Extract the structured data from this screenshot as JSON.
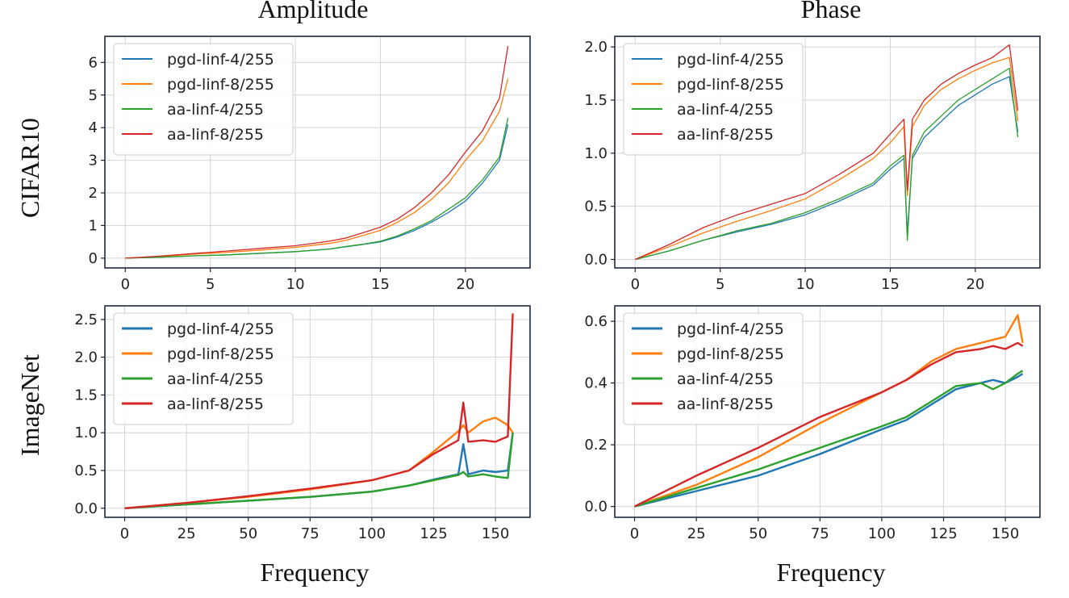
{
  "figure": {
    "col_titles": [
      "Amplitude",
      "Phase"
    ],
    "row_labels": [
      "CIFAR10",
      "ImageNet"
    ],
    "xlabel": "Frequency"
  },
  "colors": {
    "pgd-linf-4/255": "#1f77b4",
    "pgd-linf-8/255": "#ff7f0e",
    "aa-linf-4/255": "#2ca02c",
    "aa-linf-8/255": "#d62728"
  },
  "chart_data": [
    {
      "type": "line",
      "title": "Amplitude",
      "row": "CIFAR10",
      "xlim": [
        -1.2,
        23.8
      ],
      "ylim": [
        -0.3,
        6.8
      ],
      "xticks": [
        0,
        5,
        10,
        15,
        20
      ],
      "yticks": [
        0,
        1,
        2,
        3,
        4,
        5,
        6
      ],
      "legend": [
        "pgd-linf-4/255",
        "pgd-linf-8/255",
        "aa-linf-4/255",
        "aa-linf-8/255"
      ],
      "legend_position": "top-left",
      "series": [
        {
          "name": "pgd-linf-4/255",
          "x": [
            0,
            2,
            4,
            6,
            8,
            10,
            12,
            13,
            14,
            15,
            16,
            17,
            18,
            19,
            20,
            21,
            22,
            22.5
          ],
          "values": [
            0,
            0.03,
            0.07,
            0.1,
            0.15,
            0.2,
            0.28,
            0.35,
            0.42,
            0.5,
            0.65,
            0.85,
            1.1,
            1.4,
            1.75,
            2.3,
            3.0,
            4.1
          ]
        },
        {
          "name": "pgd-linf-8/255",
          "x": [
            0,
            2,
            4,
            6,
            8,
            10,
            12,
            13,
            14,
            15,
            16,
            17,
            18,
            19,
            20,
            21,
            22,
            22.5
          ],
          "values": [
            0,
            0.05,
            0.12,
            0.18,
            0.25,
            0.33,
            0.45,
            0.55,
            0.7,
            0.85,
            1.1,
            1.4,
            1.8,
            2.3,
            3.0,
            3.6,
            4.5,
            5.5
          ]
        },
        {
          "name": "aa-linf-4/255",
          "x": [
            0,
            2,
            4,
            6,
            8,
            10,
            12,
            13,
            14,
            15,
            16,
            17,
            18,
            19,
            20,
            21,
            22,
            22.5
          ],
          "values": [
            0,
            0.03,
            0.07,
            0.1,
            0.15,
            0.2,
            0.28,
            0.36,
            0.43,
            0.52,
            0.68,
            0.9,
            1.15,
            1.5,
            1.85,
            2.4,
            3.1,
            4.3
          ]
        },
        {
          "name": "aa-linf-8/255",
          "x": [
            0,
            2,
            4,
            6,
            8,
            10,
            12,
            13,
            14,
            15,
            16,
            17,
            18,
            19,
            20,
            21,
            22,
            22.5
          ],
          "values": [
            0,
            0.06,
            0.14,
            0.22,
            0.3,
            0.38,
            0.52,
            0.62,
            0.78,
            0.95,
            1.2,
            1.55,
            2.0,
            2.55,
            3.25,
            3.9,
            4.9,
            6.5
          ]
        }
      ]
    },
    {
      "type": "line",
      "title": "Phase",
      "row": "CIFAR10",
      "xlim": [
        -1.2,
        23.8
      ],
      "ylim": [
        -0.08,
        2.1
      ],
      "xticks": [
        0,
        5,
        10,
        15,
        20
      ],
      "yticks": [
        0.0,
        0.5,
        1.0,
        1.5,
        2.0
      ],
      "legend": [
        "pgd-linf-4/255",
        "pgd-linf-8/255",
        "aa-linf-4/255",
        "aa-linf-8/255"
      ],
      "legend_position": "top-left",
      "series": [
        {
          "name": "pgd-linf-4/255",
          "x": [
            0,
            2,
            4,
            6,
            8,
            10,
            12,
            14,
            15,
            15.8,
            16,
            16.3,
            17,
            18,
            19,
            20,
            21,
            22,
            22.5
          ],
          "values": [
            0,
            0.08,
            0.18,
            0.26,
            0.33,
            0.42,
            0.55,
            0.7,
            0.85,
            0.95,
            0.25,
            0.95,
            1.15,
            1.3,
            1.45,
            1.55,
            1.65,
            1.72,
            1.2
          ]
        },
        {
          "name": "pgd-linf-8/255",
          "x": [
            0,
            2,
            4,
            6,
            8,
            10,
            12,
            14,
            15,
            15.8,
            16,
            16.3,
            17,
            18,
            19,
            20,
            21,
            22,
            22.5
          ],
          "values": [
            0,
            0.12,
            0.25,
            0.36,
            0.46,
            0.57,
            0.75,
            0.95,
            1.1,
            1.25,
            0.6,
            1.25,
            1.45,
            1.6,
            1.7,
            1.78,
            1.85,
            1.9,
            1.3
          ]
        },
        {
          "name": "aa-linf-4/255",
          "x": [
            0,
            2,
            4,
            6,
            8,
            10,
            12,
            14,
            15,
            15.8,
            16,
            16.3,
            17,
            18,
            19,
            20,
            21,
            22,
            22.5
          ],
          "values": [
            0,
            0.08,
            0.18,
            0.27,
            0.34,
            0.44,
            0.57,
            0.72,
            0.88,
            0.98,
            0.18,
            0.98,
            1.2,
            1.35,
            1.5,
            1.6,
            1.7,
            1.8,
            1.15
          ]
        },
        {
          "name": "aa-linf-8/255",
          "x": [
            0,
            2,
            4,
            6,
            8,
            10,
            12,
            14,
            15,
            15.8,
            16,
            16.3,
            17,
            18,
            19,
            20,
            21,
            22,
            22.5
          ],
          "values": [
            0,
            0.14,
            0.3,
            0.42,
            0.52,
            0.62,
            0.8,
            1.0,
            1.18,
            1.32,
            0.65,
            1.32,
            1.5,
            1.65,
            1.75,
            1.83,
            1.9,
            2.02,
            1.4
          ]
        }
      ]
    },
    {
      "type": "line",
      "title": "",
      "row": "ImageNet",
      "xlim": [
        -8,
        164
      ],
      "ylim": [
        -0.12,
        2.68
      ],
      "xticks": [
        0,
        25,
        50,
        75,
        100,
        125,
        150
      ],
      "yticks": [
        0.0,
        0.5,
        1.0,
        1.5,
        2.0,
        2.5
      ],
      "yticklabels": [
        "0.0",
        "0.5",
        "1.0",
        "1.5",
        "2.0",
        "2.5"
      ],
      "legend": [
        "pgd-linf-4/255",
        "pgd-linf-8/255",
        "aa-linf-4/255",
        "aa-linf-8/255"
      ],
      "legend_position": "top-left",
      "series": [
        {
          "name": "pgd-linf-4/255",
          "x": [
            0,
            25,
            50,
            75,
            100,
            115,
            125,
            135,
            137,
            139,
            145,
            150,
            155,
            157
          ],
          "values": [
            0,
            0.05,
            0.1,
            0.15,
            0.22,
            0.3,
            0.38,
            0.45,
            0.85,
            0.45,
            0.5,
            0.48,
            0.5,
            1.0
          ]
        },
        {
          "name": "pgd-linf-8/255",
          "x": [
            0,
            25,
            50,
            75,
            100,
            115,
            125,
            135,
            137,
            139,
            145,
            150,
            155,
            157
          ],
          "values": [
            0,
            0.07,
            0.15,
            0.25,
            0.37,
            0.5,
            0.75,
            1.02,
            1.1,
            1.0,
            1.15,
            1.2,
            1.1,
            1.0
          ]
        },
        {
          "name": "aa-linf-4/255",
          "x": [
            0,
            25,
            50,
            75,
            100,
            115,
            125,
            135,
            137,
            139,
            145,
            150,
            155,
            157
          ],
          "values": [
            0,
            0.05,
            0.1,
            0.15,
            0.22,
            0.3,
            0.37,
            0.44,
            0.48,
            0.42,
            0.45,
            0.42,
            0.4,
            1.0
          ]
        },
        {
          "name": "aa-linf-8/255",
          "x": [
            0,
            25,
            50,
            75,
            100,
            115,
            125,
            135,
            137,
            139,
            145,
            150,
            155,
            157
          ],
          "values": [
            0,
            0.07,
            0.16,
            0.26,
            0.37,
            0.5,
            0.72,
            0.9,
            1.4,
            0.88,
            0.9,
            0.88,
            0.95,
            2.58
          ]
        }
      ]
    },
    {
      "type": "line",
      "title": "",
      "row": "ImageNet",
      "xlim": [
        -8,
        164
      ],
      "ylim": [
        -0.035,
        0.65
      ],
      "xticks": [
        0,
        25,
        50,
        75,
        100,
        125,
        150
      ],
      "yticks": [
        0.0,
        0.2,
        0.4,
        0.6
      ],
      "legend": [
        "pgd-linf-4/255",
        "pgd-linf-8/255",
        "aa-linf-4/255",
        "aa-linf-8/255"
      ],
      "legend_position": "top-left",
      "series": [
        {
          "name": "pgd-linf-4/255",
          "x": [
            0,
            25,
            50,
            75,
            100,
            110,
            120,
            130,
            140,
            145,
            150,
            155,
            157
          ],
          "values": [
            0,
            0.05,
            0.1,
            0.17,
            0.25,
            0.28,
            0.33,
            0.38,
            0.4,
            0.41,
            0.4,
            0.42,
            0.43
          ]
        },
        {
          "name": "pgd-linf-8/255",
          "x": [
            0,
            25,
            50,
            75,
            100,
            110,
            120,
            130,
            140,
            145,
            150,
            155,
            157
          ],
          "values": [
            0,
            0.07,
            0.16,
            0.27,
            0.37,
            0.41,
            0.47,
            0.51,
            0.53,
            0.54,
            0.55,
            0.62,
            0.53
          ]
        },
        {
          "name": "aa-linf-4/255",
          "x": [
            0,
            25,
            50,
            75,
            100,
            110,
            120,
            130,
            140,
            145,
            150,
            155,
            157
          ],
          "values": [
            0,
            0.06,
            0.12,
            0.19,
            0.26,
            0.29,
            0.34,
            0.39,
            0.4,
            0.38,
            0.4,
            0.43,
            0.44
          ]
        },
        {
          "name": "aa-linf-8/255",
          "x": [
            0,
            25,
            50,
            75,
            100,
            110,
            120,
            130,
            140,
            145,
            150,
            155,
            157
          ],
          "values": [
            0,
            0.1,
            0.19,
            0.29,
            0.37,
            0.41,
            0.46,
            0.5,
            0.51,
            0.52,
            0.51,
            0.53,
            0.52
          ]
        }
      ]
    }
  ]
}
